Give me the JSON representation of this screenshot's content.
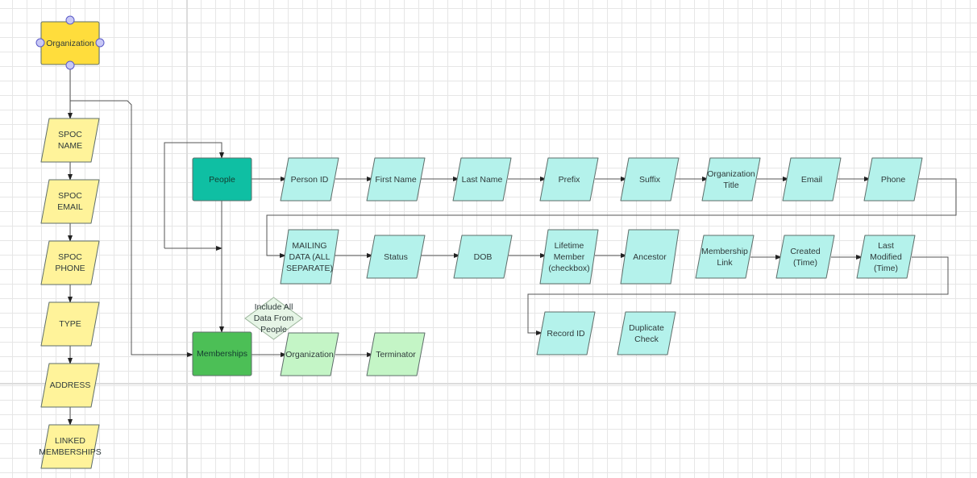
{
  "diagram": {
    "colors": {
      "organization": "#ffdd3c",
      "attribute_yellow": "#fff39a",
      "people": "#0fbfa3",
      "attribute_teal": "#b4f2eb",
      "memberships": "#4cbf56",
      "attribute_green": "#c4f5c6",
      "note_diamond": "#e6f5e6",
      "selection_handle": "#c8c8f5"
    },
    "nodes": {
      "organization": {
        "label": "Organization",
        "shape": "rectangle",
        "selected": true
      },
      "spoc_name": {
        "label": "SPOC\nNAME",
        "shape": "parallelogram"
      },
      "spoc_email": {
        "label": "SPOC\nEMAIL",
        "shape": "parallelogram"
      },
      "spoc_phone": {
        "label": "SPOC\nPHONE",
        "shape": "parallelogram"
      },
      "type": {
        "label": "TYPE",
        "shape": "parallelogram"
      },
      "address": {
        "label": "ADDRESS",
        "shape": "parallelogram"
      },
      "linked_memberships": {
        "label": "LINKED\nMEMBERSHIPS",
        "shape": "parallelogram"
      },
      "people": {
        "label": "People",
        "shape": "rectangle"
      },
      "person_id": {
        "label": "Person ID",
        "shape": "parallelogram"
      },
      "first_name": {
        "label": "First Name",
        "shape": "parallelogram"
      },
      "last_name": {
        "label": "Last Name",
        "shape": "parallelogram"
      },
      "prefix": {
        "label": "Prefix",
        "shape": "parallelogram"
      },
      "suffix": {
        "label": "Suffix",
        "shape": "parallelogram"
      },
      "organization_title": {
        "label": "Organization\nTitle",
        "shape": "parallelogram"
      },
      "email": {
        "label": "Email",
        "shape": "parallelogram"
      },
      "phone": {
        "label": "Phone",
        "shape": "parallelogram"
      },
      "mailing_data": {
        "label": "MAILING\nDATA (ALL\nSEPARATE)",
        "shape": "parallelogram"
      },
      "status": {
        "label": "Status",
        "shape": "parallelogram"
      },
      "dob": {
        "label": "DOB",
        "shape": "parallelogram"
      },
      "lifetime_member": {
        "label": "Lifetime\nMember\n(checkbox)",
        "shape": "parallelogram"
      },
      "ancestor": {
        "label": "Ancestor",
        "shape": "parallelogram"
      },
      "membership_link": {
        "label": "Membership\nLink",
        "shape": "parallelogram"
      },
      "created_time": {
        "label": "Created\n(Time)",
        "shape": "parallelogram"
      },
      "last_modified_time": {
        "label": "Last\nModified\n(Time)",
        "shape": "parallelogram"
      },
      "record_id": {
        "label": "Record ID",
        "shape": "parallelogram"
      },
      "duplicate_check": {
        "label": "Duplicate\nCheck",
        "shape": "parallelogram"
      },
      "memberships": {
        "label": "Memberships",
        "shape": "rectangle"
      },
      "include_all_data": {
        "label": "Include All\nData From\nPeople",
        "shape": "diamond"
      },
      "membership_organization": {
        "label": "Organization",
        "shape": "parallelogram"
      },
      "terminator": {
        "label": "Terminator",
        "shape": "parallelogram"
      }
    }
  }
}
